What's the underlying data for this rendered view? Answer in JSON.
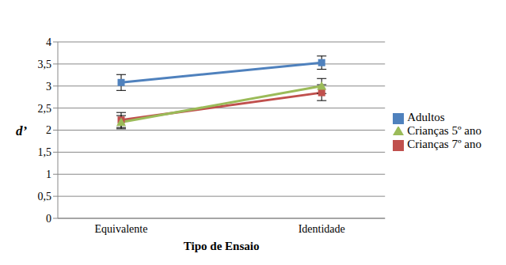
{
  "chart_data": {
    "type": "line",
    "x_label": "Tipo de Ensaio",
    "y_label": "d’",
    "categories": [
      "Equivalente",
      "Identidade"
    ],
    "series": [
      {
        "name": "Adultos",
        "color": "#4f81bd",
        "marker": "square",
        "values": [
          3.08,
          3.53
        ],
        "errors": [
          0.18,
          0.15
        ]
      },
      {
        "name": "Crianças 7º ano",
        "color": "#c0504d",
        "marker": "square",
        "values": [
          2.23,
          2.85
        ],
        "errors": [
          0.17,
          0.18
        ]
      },
      {
        "name": "Crianças 5º ano",
        "color": "#9bbb59",
        "marker": "triangle",
        "values": [
          2.18,
          3.0
        ],
        "errors": [
          0.15,
          0.17
        ]
      }
    ],
    "ylim": [
      0,
      4
    ],
    "yticks": [
      0,
      {
        "value": 0.5,
        "label": "0,5"
      },
      1,
      {
        "value": 1.5,
        "label": "1,5"
      },
      2,
      {
        "value": 2.5,
        "label": "2,5"
      },
      3,
      {
        "value": 3.5,
        "label": "3,5"
      },
      4
    ],
    "grid": true,
    "legend": "right"
  }
}
